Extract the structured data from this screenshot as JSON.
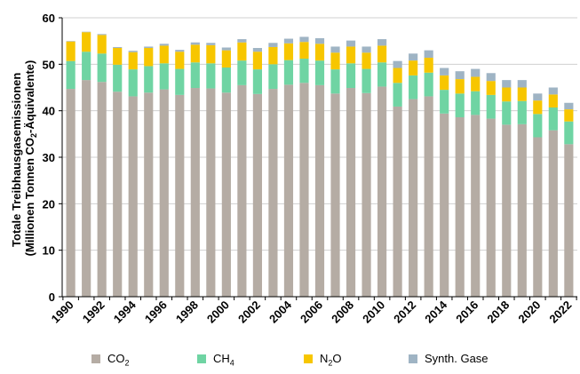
{
  "chart_data": {
    "type": "bar",
    "stacked": true,
    "ylabel_line1": "Totale Treibhausgasemissionen",
    "ylabel_line2_pre": "(Millionen Tonnen CO",
    "ylabel_line2_sub": "2",
    "ylabel_line2_post": "-Äquivalente)",
    "ylim": [
      0,
      60
    ],
    "yticks": [
      "0",
      "10",
      "20",
      "30",
      "40",
      "50",
      "60"
    ],
    "grid": true,
    "legend_position": "bottom",
    "categories": [
      1990,
      1991,
      1992,
      1993,
      1994,
      1995,
      1996,
      1997,
      1998,
      1999,
      2000,
      2001,
      2002,
      2003,
      2004,
      2005,
      2006,
      2007,
      2008,
      2009,
      2010,
      2011,
      2012,
      2013,
      2014,
      2015,
      2016,
      2017,
      2018,
      2019,
      2020,
      2021,
      2022
    ],
    "xtick_labels": [
      "1990",
      "1992",
      "1994",
      "1996",
      "1998",
      "2000",
      "2002",
      "2004",
      "2006",
      "2008",
      "2010",
      "2012",
      "2014",
      "2016",
      "2018",
      "2020",
      "2022"
    ],
    "series": [
      {
        "name_main": "CO",
        "name_sub": "2",
        "color": "#b5aca4",
        "values": [
          44.7,
          46.6,
          46.2,
          44.1,
          43.1,
          43.9,
          44.6,
          43.4,
          44.9,
          44.8,
          43.9,
          45.5,
          43.6,
          44.7,
          45.6,
          46.0,
          45.5,
          43.7,
          44.9,
          43.8,
          45.2,
          40.9,
          42.5,
          43.1,
          39.4,
          38.6,
          39.1,
          38.3,
          37.0,
          37.1,
          34.3,
          35.8,
          32.8
        ]
      },
      {
        "name_main": "CH",
        "name_sub": "4",
        "color": "#6fd4a3",
        "values": [
          6.0,
          6.1,
          6.1,
          5.8,
          5.8,
          5.7,
          5.6,
          5.6,
          5.5,
          5.4,
          5.4,
          5.3,
          5.3,
          5.3,
          5.3,
          5.2,
          5.3,
          5.2,
          5.3,
          5.2,
          5.2,
          5.1,
          5.1,
          5.1,
          5.1,
          5.1,
          5.1,
          5.1,
          5.0,
          5.0,
          5.0,
          4.9,
          4.9
        ]
      },
      {
        "name_main": "N",
        "name_sub": "2",
        "name_post": "O",
        "color": "#f7c600",
        "values": [
          4.2,
          4.2,
          4.0,
          3.6,
          3.7,
          3.9,
          3.8,
          3.7,
          3.8,
          3.9,
          3.7,
          3.9,
          3.8,
          3.7,
          3.6,
          3.6,
          3.6,
          3.6,
          3.6,
          3.5,
          3.6,
          3.2,
          3.2,
          3.2,
          3.1,
          3.1,
          3.1,
          3.0,
          3.0,
          2.9,
          2.9,
          2.8,
          2.6
        ]
      },
      {
        "name_main": "Synth. Gase",
        "color": "#9fb4c4",
        "values": [
          0.1,
          0.1,
          0.2,
          0.2,
          0.3,
          0.3,
          0.4,
          0.4,
          0.5,
          0.5,
          0.6,
          0.7,
          0.8,
          0.9,
          1.0,
          1.1,
          1.2,
          1.3,
          1.3,
          1.3,
          1.4,
          1.5,
          1.5,
          1.6,
          1.6,
          1.7,
          1.7,
          1.7,
          1.6,
          1.6,
          1.5,
          1.5,
          1.4
        ]
      }
    ]
  }
}
